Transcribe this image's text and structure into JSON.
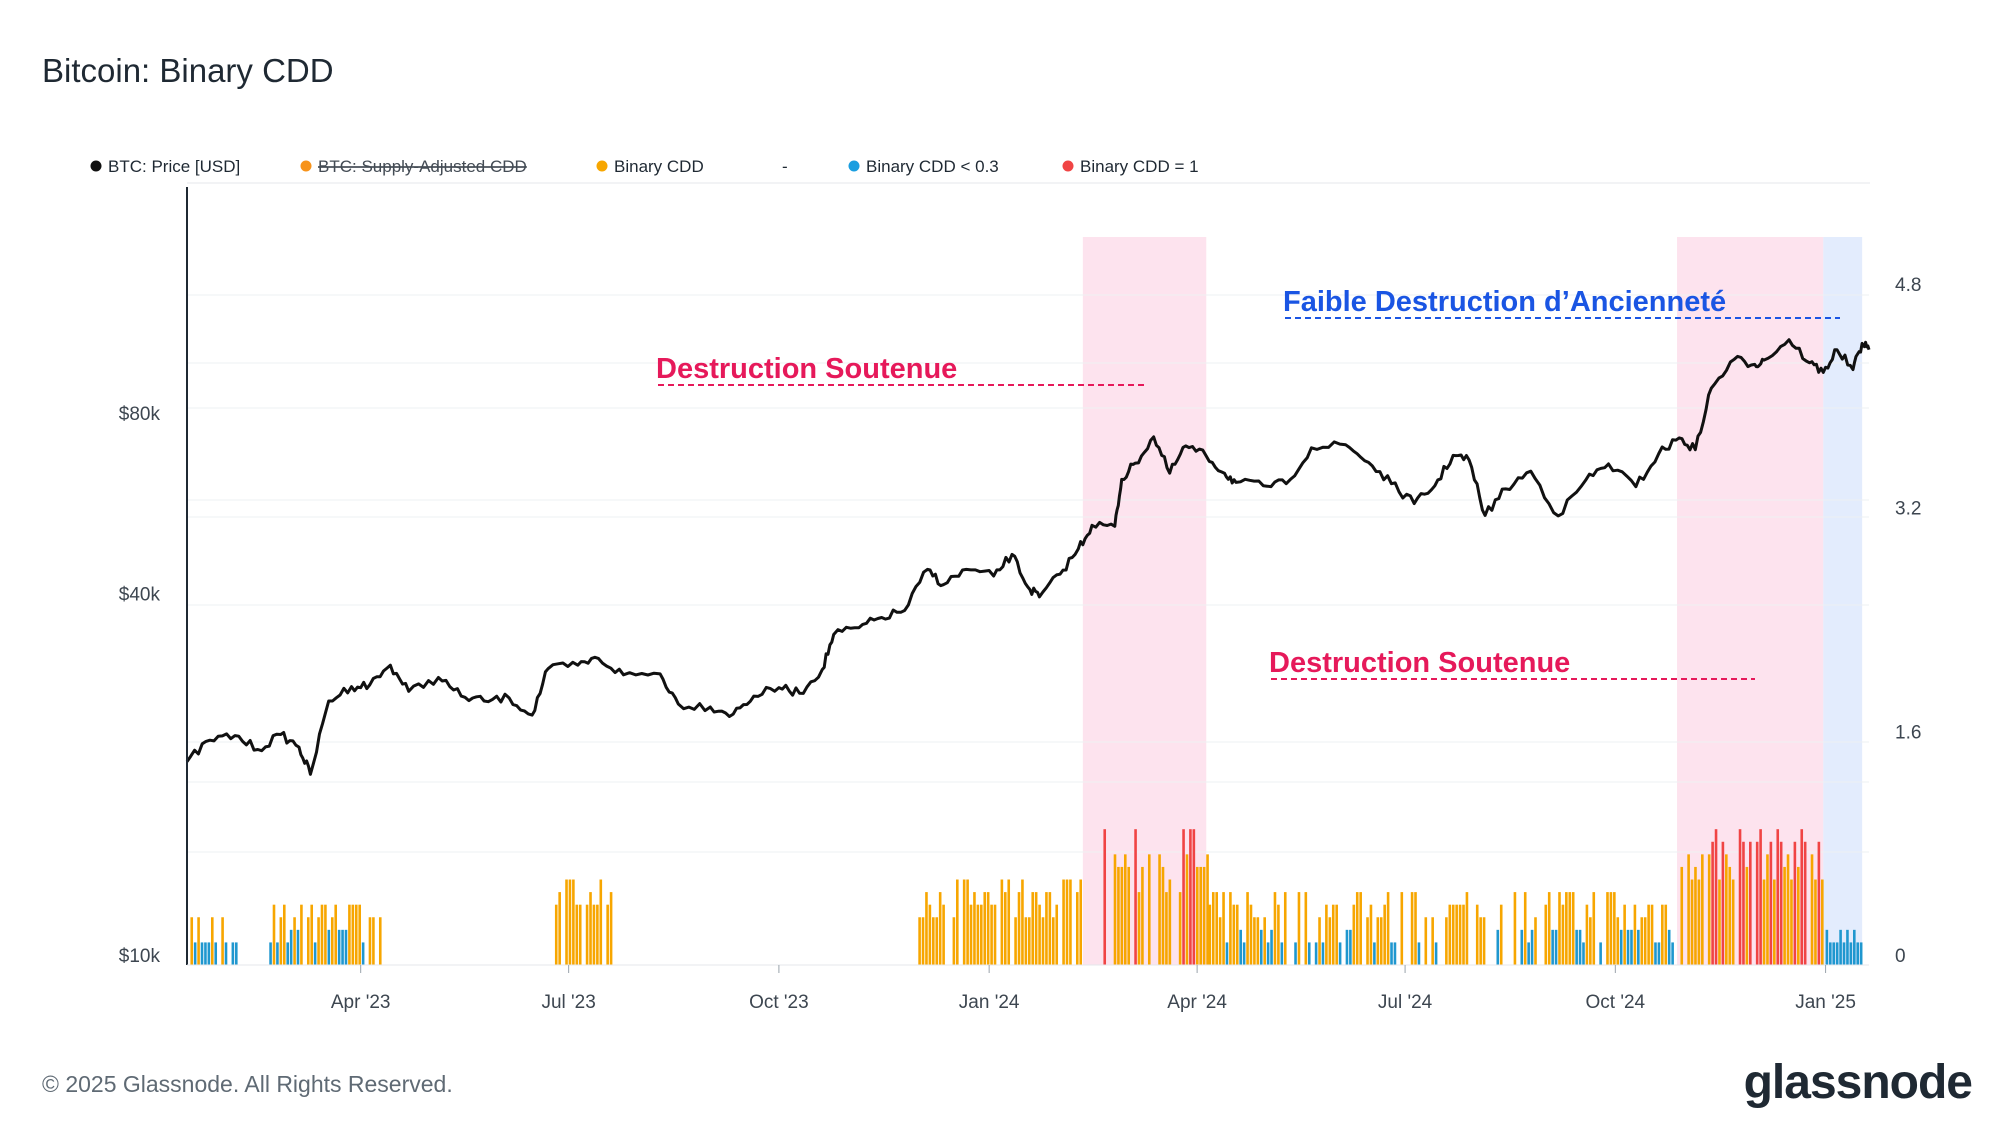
{
  "header": {
    "title": "Bitcoin: Binary CDD"
  },
  "legend": [
    {
      "label": "BTC: Price [USD]",
      "color": "#111111",
      "struck": false
    },
    {
      "label": "BTC: Supply-Adjusted CDD",
      "color": "#f7931a",
      "struck": true
    },
    {
      "label": "Binary CDD",
      "color": "#f7a600",
      "struck": false
    },
    {
      "label": "-",
      "color": "",
      "struck": false
    },
    {
      "label": "Binary CDD < 0.3",
      "color": "#1a9ee0",
      "struck": false
    },
    {
      "label": "Binary CDD = 1",
      "color": "#f04444",
      "struck": false
    }
  ],
  "annotations": {
    "sustained_1": "Destruction Soutenue",
    "low_destruction": "Faible Destruction d’Ancienneté",
    "sustained_2": "Destruction Soutenue"
  },
  "footer": {
    "copyright": "© 2025 Glassnode. All Rights Reserved.",
    "logo": "glassnode"
  },
  "chart_data": {
    "type": "line",
    "x_range": [
      "2023-01-15",
      "2025-01-20"
    ],
    "x_ticks": [
      {
        "date": "2023-04-01",
        "label": "Apr '23"
      },
      {
        "date": "2023-07-01",
        "label": "Jul '23"
      },
      {
        "date": "2023-10-01",
        "label": "Oct '23"
      },
      {
        "date": "2024-01-01",
        "label": "Jan '24"
      },
      {
        "date": "2024-04-01",
        "label": "Apr '24"
      },
      {
        "date": "2024-07-01",
        "label": "Jul '24"
      },
      {
        "date": "2024-10-01",
        "label": "Oct '24"
      },
      {
        "date": "2025-01-01",
        "label": "Jan '25"
      }
    ],
    "y_left": {
      "scale": "log",
      "ticks": [
        10000,
        40000,
        80000
      ],
      "tick_labels": [
        "$10k",
        "$40k",
        "$80k"
      ]
    },
    "y_right": {
      "scale": "linear",
      "range": [
        0,
        5.6
      ],
      "ticks": [
        0,
        1.6,
        3.2,
        4.8
      ],
      "tick_labels": [
        "0",
        "1.6",
        "3.2",
        "4.8"
      ]
    },
    "highlight_periods": [
      {
        "start": "2024-02-11",
        "end": "2024-04-05",
        "color": "#fde3ee"
      },
      {
        "start": "2024-10-28",
        "end": "2024-12-31",
        "color": "#fde3ee"
      },
      {
        "start": "2024-12-31",
        "end": "2025-01-17",
        "color": "#e3ecfd"
      }
    ],
    "series": [
      {
        "name": "BTC: Price [USD]",
        "axis": "left",
        "color": "#111111",
        "points": [
          [
            "2023-01-15",
            21000
          ],
          [
            "2023-01-25",
            22800
          ],
          [
            "2023-02-05",
            23200
          ],
          [
            "2023-02-15",
            22000
          ],
          [
            "2023-02-25",
            23300
          ],
          [
            "2023-03-05",
            22200
          ],
          [
            "2023-03-10",
            20000
          ],
          [
            "2023-03-18",
            26500
          ],
          [
            "2023-03-28",
            28000
          ],
          [
            "2023-04-05",
            28200
          ],
          [
            "2023-04-14",
            30400
          ],
          [
            "2023-04-22",
            27500
          ],
          [
            "2023-05-05",
            29000
          ],
          [
            "2023-05-15",
            27000
          ],
          [
            "2023-05-25",
            26500
          ],
          [
            "2023-06-05",
            26800
          ],
          [
            "2023-06-15",
            25100
          ],
          [
            "2023-06-22",
            30000
          ],
          [
            "2023-07-05",
            30400
          ],
          [
            "2023-07-14",
            31200
          ],
          [
            "2023-07-25",
            29300
          ],
          [
            "2023-08-10",
            29400
          ],
          [
            "2023-08-18",
            26200
          ],
          [
            "2023-09-01",
            25900
          ],
          [
            "2023-09-11",
            25200
          ],
          [
            "2023-09-20",
            27000
          ],
          [
            "2023-10-01",
            27900
          ],
          [
            "2023-10-10",
            27300
          ],
          [
            "2023-10-20",
            29900
          ],
          [
            "2023-10-25",
            34200
          ],
          [
            "2023-11-05",
            35100
          ],
          [
            "2023-11-15",
            36500
          ],
          [
            "2023-11-25",
            37500
          ],
          [
            "2023-12-05",
            43900
          ],
          [
            "2023-12-12",
            41400
          ],
          [
            "2023-12-22",
            43900
          ],
          [
            "2024-01-03",
            42800
          ],
          [
            "2024-01-11",
            46500
          ],
          [
            "2024-01-18",
            41000
          ],
          [
            "2024-01-23",
            39500
          ],
          [
            "2024-02-01",
            43100
          ],
          [
            "2024-02-09",
            47500
          ],
          [
            "2024-02-15",
            52000
          ],
          [
            "2024-02-25",
            51800
          ],
          [
            "2024-02-28",
            62000
          ],
          [
            "2024-03-05",
            66000
          ],
          [
            "2024-03-13",
            73000
          ],
          [
            "2024-03-20",
            63500
          ],
          [
            "2024-03-27",
            70500
          ],
          [
            "2024-04-05",
            67800
          ],
          [
            "2024-04-13",
            63500
          ],
          [
            "2024-04-18",
            61300
          ],
          [
            "2024-04-30",
            60500
          ],
          [
            "2024-05-10",
            61000
          ],
          [
            "2024-05-21",
            70000
          ],
          [
            "2024-06-05",
            70800
          ],
          [
            "2024-06-15",
            66200
          ],
          [
            "2024-06-25",
            61000
          ],
          [
            "2024-07-05",
            56500
          ],
          [
            "2024-07-14",
            60500
          ],
          [
            "2024-07-22",
            68000
          ],
          [
            "2024-07-29",
            66800
          ],
          [
            "2024-08-05",
            54000
          ],
          [
            "2024-08-14",
            59800
          ],
          [
            "2024-08-25",
            64000
          ],
          [
            "2024-09-06",
            53900
          ],
          [
            "2024-09-18",
            61800
          ],
          [
            "2024-09-28",
            65800
          ],
          [
            "2024-10-10",
            60300
          ],
          [
            "2024-10-20",
            68500
          ],
          [
            "2024-10-29",
            72700
          ],
          [
            "2024-11-05",
            69500
          ],
          [
            "2024-11-12",
            88000
          ],
          [
            "2024-11-22",
            98300
          ],
          [
            "2024-12-01",
            96400
          ],
          [
            "2024-12-05",
            98000
          ],
          [
            "2024-12-16",
            106000
          ],
          [
            "2024-12-25",
            97000
          ],
          [
            "2024-12-31",
            93500
          ],
          [
            "2025-01-06",
            102000
          ],
          [
            "2025-01-13",
            94500
          ],
          [
            "2025-01-17",
            104500
          ],
          [
            "2025-01-20",
            102000
          ]
        ]
      },
      {
        "name": "Binary CDD",
        "axis": "right",
        "style": "bars",
        "colors": {
          "low": "#1f97cf",
          "mid": "#f7a600",
          "high": "#f04444"
        },
        "segments": [
          {
            "start": "2023-01-15",
            "end": "2023-02-05",
            "levels": [
              0.3,
              0.1
            ]
          },
          {
            "start": "2023-02-20",
            "end": "2023-04-10",
            "levels": [
              0.3,
              0.4,
              0.2,
              0.1
            ]
          },
          {
            "start": "2023-06-25",
            "end": "2023-07-20",
            "levels": [
              0.4,
              0.5,
              0.6
            ]
          },
          {
            "start": "2023-12-01",
            "end": "2024-02-10",
            "levels": [
              0.3,
              0.4,
              0.5,
              0.6
            ]
          },
          {
            "start": "2024-02-11",
            "end": "2024-04-05",
            "levels": [
              0.5,
              0.6,
              0.7,
              0.8,
              1.0
            ]
          },
          {
            "start": "2024-04-06",
            "end": "2024-10-27",
            "levels": [
              0.1,
              0.2,
              0.3,
              0.4,
              0.5
            ]
          },
          {
            "start": "2024-10-28",
            "end": "2024-12-31",
            "levels": [
              0.6,
              0.7,
              0.8,
              0.9,
              1.0
            ]
          },
          {
            "start": "2025-01-01",
            "end": "2025-01-17",
            "levels": [
              0.1,
              0.2
            ]
          }
        ]
      }
    ]
  }
}
